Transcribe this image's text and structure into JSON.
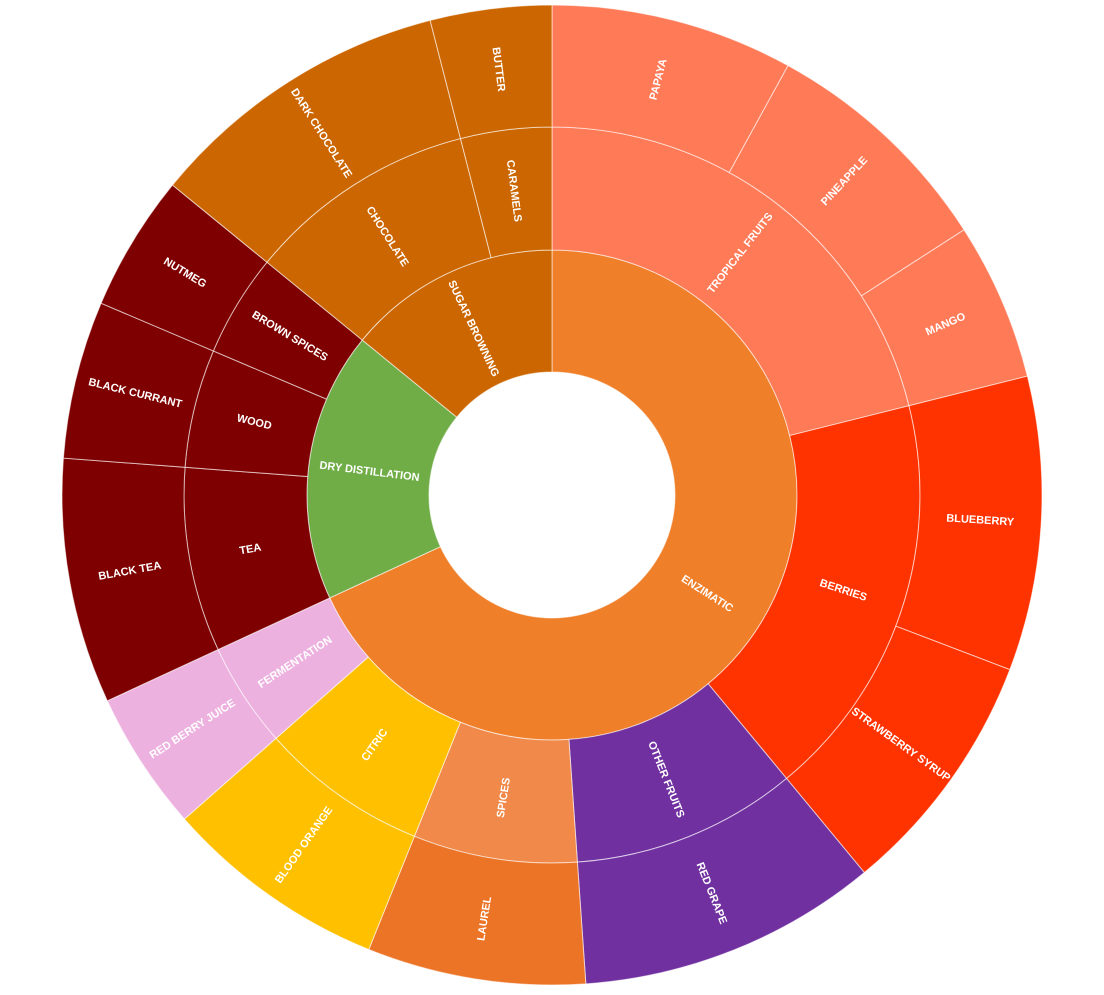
{
  "chart_data": {
    "type": "sunburst",
    "nodes": [
      {
        "name": "ENZIMATIC",
        "color": "#F07F2A",
        "children": [
          {
            "name": "TROPICAL FRUITS",
            "color": "#FF7A57",
            "children": [
              {
                "name": "PAPAYA",
                "value": 8,
                "color": "#FF7A57"
              },
              {
                "name": "PINEAPPLE",
                "value": 7.9,
                "color": "#FF7A57"
              },
              {
                "name": "MANGO",
                "value": 5.2,
                "color": "#FF7A57"
              }
            ]
          },
          {
            "name": "BERRIES",
            "color": "#FF3300",
            "children": [
              {
                "name": "BLUEBERRY",
                "value": 9.7,
                "color": "#FF3300"
              },
              {
                "name": "STRAWBERRY SYRUP",
                "value": 8.2,
                "color": "#FF3300"
              }
            ]
          },
          {
            "name": "OTHER FRUITS",
            "color": "#7030A0",
            "children": [
              {
                "name": "RED GRAPE",
                "value": 9.9,
                "color": "#7030A0"
              }
            ]
          },
          {
            "name": "SPICES",
            "color": "#F0894A",
            "children": [
              {
                "name": "LAUREL",
                "value": 7.2,
                "color": "#EC7427"
              }
            ]
          },
          {
            "name": "CITRIC",
            "color": "#FFC000",
            "children": [
              {
                "name": "BLOOD ORANGE",
                "value": 7.4,
                "color": "#FFC000"
              }
            ]
          },
          {
            "name": "FERMENTATION",
            "color": "#EDB1E0",
            "children": [
              {
                "name": "RED BERRY JUICE",
                "value": 4.6,
                "color": "#EDB1E0"
              }
            ]
          }
        ]
      },
      {
        "name": "DRY DISTILLATION",
        "color": "#70AD47",
        "children": [
          {
            "name": "TEA",
            "color": "#7F0000",
            "children": [
              {
                "name": "BLACK TEA",
                "value": 8.1,
                "color": "#7F0000"
              }
            ]
          },
          {
            "name": "WOOD",
            "color": "#7F0000",
            "children": [
              {
                "name": "BLACK CURRANT",
                "value": 5.2,
                "color": "#7F0000"
              }
            ]
          },
          {
            "name": "BROWN SPICES",
            "color": "#7F0000",
            "children": [
              {
                "name": "NUTMEG",
                "value": 4.5,
                "color": "#7F0000"
              }
            ]
          }
        ]
      },
      {
        "name": "SUGAR BROWNING",
        "color": "#CC6600",
        "children": [
          {
            "name": "CHOCOLATE",
            "color": "#CC6600",
            "children": [
              {
                "name": "DARK CHOCOLATE",
                "value": 10.1,
                "color": "#CC6600"
              }
            ]
          },
          {
            "name": "CARAMELS",
            "color": "#CC6600",
            "children": [
              {
                "name": "BUTTER",
                "value": 4,
                "color": "#CC6600"
              }
            ]
          }
        ]
      }
    ]
  }
}
